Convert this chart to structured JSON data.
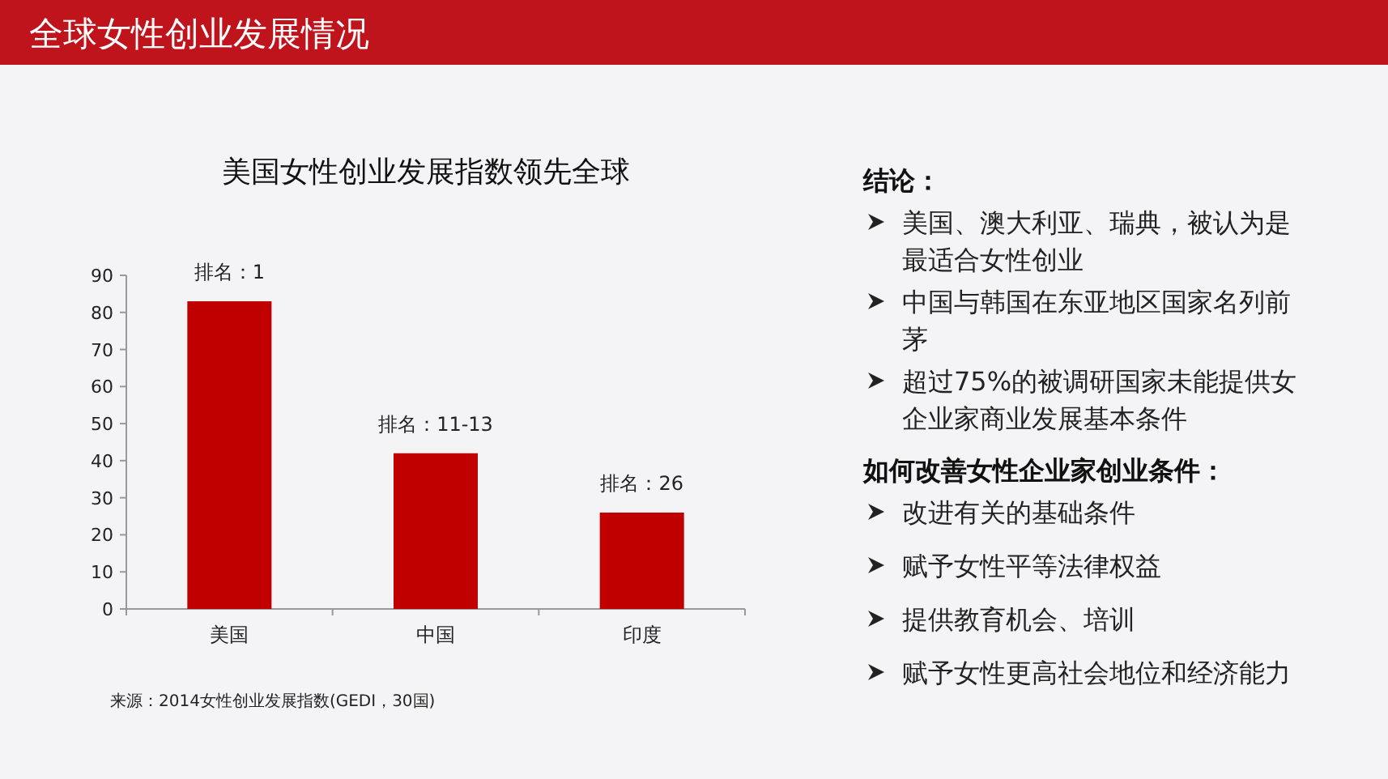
{
  "chart_data": [
    {
      "type": "bar",
      "title": "全球女性创业发展情况",
      "subtitle": "美国女性创业发展指数领先全球",
      "categories": [
        "美国",
        "中国",
        "印度"
      ],
      "values": [
        83,
        42,
        26
      ],
      "color": "#c00000",
      "ylim": [
        0,
        90
      ],
      "yticks": [
        0,
        10,
        20,
        30,
        40,
        50,
        60,
        70,
        80,
        90
      ],
      "grid": false,
      "annotations": [
        {
          "text": "排名：1",
          "x": "美国",
          "y": 83
        },
        {
          "text": "排名：11-13",
          "x": "中国",
          "y": 42
        },
        {
          "text": "排名：26",
          "x": "印度",
          "y": 26
        },
        "来源：2014女性创业发展指数(GEDI，30国)"
      ]
    },
    {
      "type": "other",
      "title": "结论：",
      "annotations": [
        "美国、澳大利亚、瑞典，被认为是最适合女性创业",
        "中国与韩国在东亚地区国家名列前茅",
        "超过75%的被调研国家未能提供女企业家商业发展基本条件"
      ]
    },
    {
      "type": "other",
      "title": "如何改善女性企业家创业条件：",
      "annotations": [
        "改进有关的基础条件",
        "赋予女性平等法律权益",
        "提供教育机会、培训",
        "赋予女性更高社会地位和经济能力"
      ]
    }
  ]
}
